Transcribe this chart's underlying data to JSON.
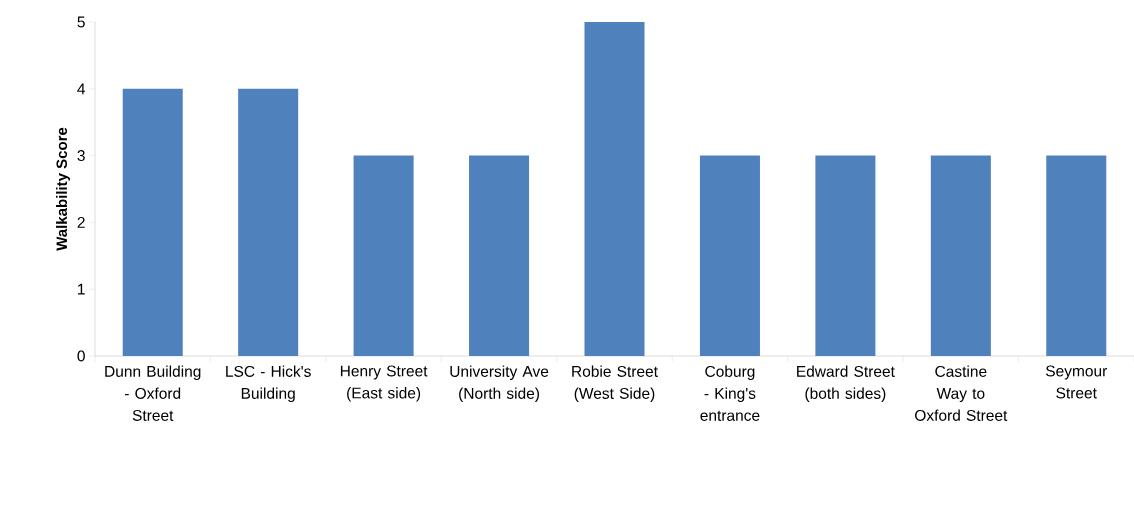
{
  "chart_data": {
    "type": "bar",
    "ylabel": "Walkability Score",
    "categories": [
      "Dunn Building - Oxford Street",
      "LSC - Hick's Building",
      "Henry Street (East side)",
      "University Ave (North side)",
      "Robie Street (West Side)",
      "Coburg - King's entrance",
      "Edward Street (both sides)",
      "Castine Way to Oxford Street",
      "Seymour Street"
    ],
    "values": [
      4,
      4,
      3,
      3,
      5,
      3,
      3,
      3,
      3
    ],
    "color": "#4f81bd",
    "ylim": [
      0,
      5
    ],
    "yticks": [
      0,
      1,
      2,
      3,
      4,
      5
    ],
    "grid": false
  }
}
